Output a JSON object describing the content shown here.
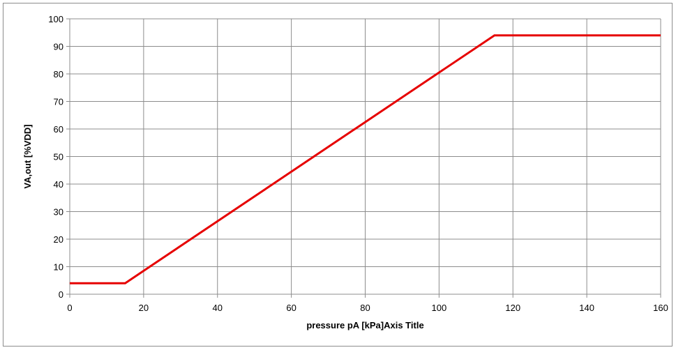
{
  "chart_data": {
    "type": "line",
    "title": "",
    "xlabel": "pressure pA [kPa]Axis Title",
    "ylabel": "VA,out [%VDD]",
    "xlim": [
      0,
      160
    ],
    "ylim": [
      0,
      100
    ],
    "x_ticks": [
      0,
      20,
      40,
      60,
      80,
      100,
      120,
      140,
      160
    ],
    "y_ticks": [
      0,
      10,
      20,
      30,
      40,
      50,
      60,
      70,
      80,
      90,
      100
    ],
    "x_tick_labels": [
      "0",
      "20",
      "40",
      "60",
      "80",
      "100",
      "120",
      "140",
      "160"
    ],
    "y_tick_labels": [
      "0",
      "10",
      "20",
      "30",
      "40",
      "50",
      "60",
      "70",
      "80",
      "90",
      "100"
    ],
    "grid": true,
    "legend": "none",
    "series": [
      {
        "color": "#e60000",
        "x": [
          0,
          15,
          115,
          160
        ],
        "y": [
          4,
          4,
          94,
          94
        ]
      }
    ]
  }
}
